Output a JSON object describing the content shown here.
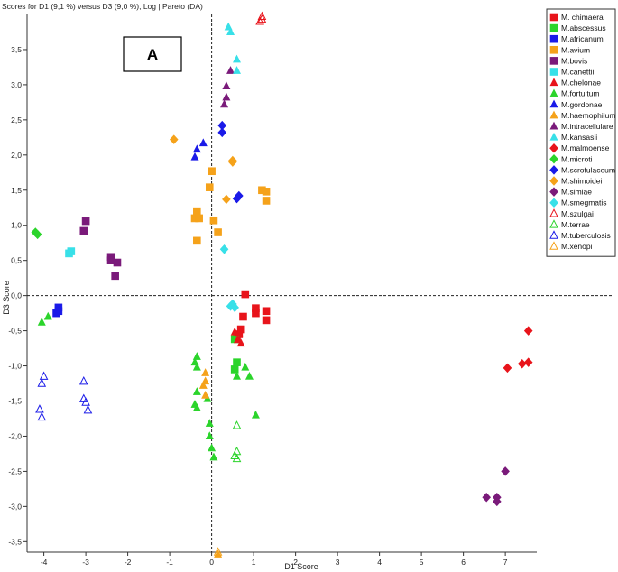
{
  "chart_data": {
    "type": "scatter",
    "title": "Scores for D1 (9,1 %) versus D3 (9,0 %), Log | Pareto (DA)",
    "panel_label": "A",
    "xlabel": "D1 Score",
    "ylabel": "D3 Score",
    "xlim": [
      -4.4,
      7.75
    ],
    "ylim": [
      -3.65,
      4.0
    ],
    "x_ticks": [
      -4,
      -3,
      -2,
      -1,
      0,
      1,
      2,
      3,
      4,
      5,
      6,
      7
    ],
    "x_tick_labels": [
      "-4",
      "-3",
      "-2",
      "-1",
      "0",
      "1",
      "2",
      "3",
      "4",
      "5",
      "6",
      "7"
    ],
    "y_ticks": [
      -3.5,
      -3,
      -2.5,
      -2,
      -1.5,
      -1,
      -0.5,
      0,
      0.5,
      1,
      1.5,
      2,
      2.5,
      3,
      3.5
    ],
    "y_tick_labels": [
      "-3,5",
      "-3,0",
      "-2,5",
      "-2,0",
      "-1,5",
      "-1,0",
      "-0,5",
      "0,0",
      "0,5",
      "1,0",
      "1,5",
      "2,0",
      "2,5",
      "3,0",
      "3,5"
    ],
    "grid": false,
    "zero_lines": "dashed",
    "legend_position": "right",
    "series": [
      {
        "name": "M. chimaera",
        "color": "#e8141b",
        "marker": "square",
        "filled": true,
        "points": [
          [
            0.8,
            0.02
          ],
          [
            1.05,
            -0.18
          ],
          [
            1.05,
            -0.25
          ],
          [
            1.3,
            -0.22
          ],
          [
            1.3,
            -0.35
          ],
          [
            0.75,
            -0.3
          ],
          [
            0.7,
            -0.48
          ],
          [
            0.65,
            -0.55
          ],
          [
            0.6,
            -0.6
          ]
        ]
      },
      {
        "name": "M.abscessus",
        "color": "#2bd42b",
        "marker": "square",
        "filled": true,
        "points": [
          [
            0.6,
            -0.95
          ],
          [
            0.55,
            -1.05
          ],
          [
            0.55,
            -0.62
          ]
        ]
      },
      {
        "name": "M.africanum",
        "color": "#1a1ae8",
        "marker": "square",
        "filled": true,
        "points": [
          [
            -3.65,
            -0.17
          ],
          [
            -3.65,
            -0.22
          ],
          [
            -3.7,
            -0.25
          ]
        ]
      },
      {
        "name": "M.avium",
        "color": "#f5a21a",
        "marker": "square",
        "filled": true,
        "points": [
          [
            0.0,
            1.77
          ],
          [
            -0.05,
            1.54
          ],
          [
            -0.35,
            1.2
          ],
          [
            -0.4,
            1.1
          ],
          [
            -0.3,
            1.1
          ],
          [
            0.05,
            1.07
          ],
          [
            0.15,
            0.9
          ],
          [
            -0.35,
            0.78
          ],
          [
            1.2,
            1.5
          ],
          [
            1.3,
            1.48
          ],
          [
            1.3,
            1.35
          ]
        ]
      },
      {
        "name": "M.bovis",
        "color": "#7a1a7a",
        "marker": "square",
        "filled": true,
        "points": [
          [
            -3.0,
            1.06
          ],
          [
            -3.05,
            0.92
          ],
          [
            -2.4,
            0.55
          ],
          [
            -2.4,
            0.5
          ],
          [
            -2.25,
            0.47
          ],
          [
            -2.3,
            0.28
          ]
        ]
      },
      {
        "name": "M.canettii",
        "color": "#38e0e8",
        "marker": "square",
        "filled": true,
        "points": [
          [
            -3.35,
            0.63
          ],
          [
            -3.4,
            0.6
          ]
        ]
      },
      {
        "name": "M.chelonae",
        "color": "#e8141b",
        "marker": "triangle",
        "filled": true,
        "points": [
          [
            0.55,
            -0.52
          ],
          [
            0.65,
            -0.53
          ],
          [
            0.7,
            -0.68
          ],
          [
            0.62,
            -0.63
          ]
        ]
      },
      {
        "name": "M.fortuitum",
        "color": "#2bd42b",
        "marker": "triangle",
        "filled": true,
        "points": [
          [
            -0.35,
            -0.87
          ],
          [
            -0.4,
            -0.95
          ],
          [
            -0.35,
            -1.02
          ],
          [
            -0.35,
            -1.37
          ],
          [
            -0.4,
            -1.55
          ],
          [
            -0.35,
            -1.6
          ],
          [
            -0.1,
            -1.47
          ],
          [
            -0.05,
            -1.82
          ],
          [
            -0.05,
            -2.0
          ],
          [
            0.0,
            -2.17
          ],
          [
            0.05,
            -2.3
          ],
          [
            -4.05,
            -0.38
          ],
          [
            -3.9,
            -0.3
          ],
          [
            0.8,
            -1.02
          ],
          [
            0.9,
            -1.15
          ],
          [
            1.05,
            -1.7
          ],
          [
            0.6,
            -1.15
          ]
        ]
      },
      {
        "name": "M.gordonae",
        "color": "#1a1ae8",
        "marker": "triangle",
        "filled": true,
        "points": [
          [
            -0.4,
            1.97
          ],
          [
            -0.35,
            2.08
          ],
          [
            -0.2,
            2.17
          ]
        ]
      },
      {
        "name": "M.haemophilum",
        "color": "#f5a21a",
        "marker": "triangle",
        "filled": true,
        "points": [
          [
            -0.15,
            -1.1
          ],
          [
            -0.15,
            -1.22
          ],
          [
            -0.2,
            -1.28
          ],
          [
            -0.15,
            -1.42
          ],
          [
            0.15,
            -3.68
          ]
        ]
      },
      {
        "name": "M.intracellulare",
        "color": "#7a1a7a",
        "marker": "triangle",
        "filled": true,
        "points": [
          [
            0.35,
            2.98
          ],
          [
            0.35,
            2.82
          ],
          [
            0.3,
            2.72
          ],
          [
            0.45,
            3.2
          ]
        ]
      },
      {
        "name": "M.kansasii",
        "color": "#38e0e8",
        "marker": "triangle",
        "filled": true,
        "points": [
          [
            0.4,
            3.82
          ],
          [
            0.45,
            3.75
          ],
          [
            0.6,
            3.36
          ],
          [
            0.6,
            3.2
          ]
        ]
      },
      {
        "name": "M.malmoense",
        "color": "#e8141b",
        "marker": "diamond",
        "filled": true,
        "points": [
          [
            7.05,
            -1.03
          ],
          [
            7.4,
            -0.97
          ],
          [
            7.55,
            -0.95
          ],
          [
            7.55,
            -0.5
          ]
        ]
      },
      {
        "name": "M.microti",
        "color": "#2bd42b",
        "marker": "diamond",
        "filled": true,
        "points": [
          [
            -4.2,
            0.9
          ],
          [
            -4.15,
            0.87
          ]
        ]
      },
      {
        "name": "M.scrofulaceum",
        "color": "#1a1ae8",
        "marker": "diamond",
        "filled": true,
        "points": [
          [
            0.25,
            2.42
          ],
          [
            0.25,
            2.32
          ],
          [
            0.6,
            1.38
          ],
          [
            0.65,
            1.42
          ]
        ]
      },
      {
        "name": "M.shimoidei",
        "color": "#f5a21a",
        "marker": "diamond",
        "filled": true,
        "points": [
          [
            -0.9,
            2.22
          ],
          [
            0.5,
            1.9
          ],
          [
            0.5,
            1.92
          ],
          [
            0.35,
            1.37
          ]
        ]
      },
      {
        "name": "M.simiae",
        "color": "#7a1a7a",
        "marker": "diamond",
        "filled": true,
        "points": [
          [
            6.55,
            -2.87
          ],
          [
            6.8,
            -2.87
          ],
          [
            6.8,
            -2.93
          ],
          [
            7.0,
            -2.5
          ]
        ]
      },
      {
        "name": "M.smegmatis",
        "color": "#38e0e8",
        "marker": "diamond",
        "filled": true,
        "points": [
          [
            0.3,
            0.66
          ],
          [
            0.45,
            -0.15
          ],
          [
            0.5,
            -0.12
          ],
          [
            0.55,
            -0.17
          ]
        ]
      },
      {
        "name": "M.szulgai",
        "color": "#e8141b",
        "marker": "triangle",
        "filled": false,
        "points": [
          [
            1.2,
            3.97
          ],
          [
            1.2,
            3.93
          ],
          [
            1.15,
            3.9
          ]
        ]
      },
      {
        "name": "M.terrae",
        "color": "#2bd42b",
        "marker": "triangle",
        "filled": false,
        "points": [
          [
            0.6,
            -1.85
          ],
          [
            0.6,
            -2.22
          ],
          [
            0.55,
            -2.28
          ],
          [
            0.6,
            -2.32
          ]
        ]
      },
      {
        "name": "M.tuberculosis",
        "color": "#1a1ae8",
        "marker": "triangle",
        "filled": false,
        "points": [
          [
            -4.0,
            -1.15
          ],
          [
            -4.05,
            -1.25
          ],
          [
            -4.1,
            -1.62
          ],
          [
            -4.05,
            -1.73
          ],
          [
            -3.05,
            -1.22
          ],
          [
            -3.05,
            -1.47
          ],
          [
            -3.0,
            -1.52
          ],
          [
            -2.95,
            -1.63
          ]
        ]
      },
      {
        "name": "M.xenopi",
        "color": "#f5a21a",
        "marker": "triangle",
        "filled": false,
        "points": [
          [
            0.15,
            -3.65
          ]
        ]
      }
    ]
  }
}
